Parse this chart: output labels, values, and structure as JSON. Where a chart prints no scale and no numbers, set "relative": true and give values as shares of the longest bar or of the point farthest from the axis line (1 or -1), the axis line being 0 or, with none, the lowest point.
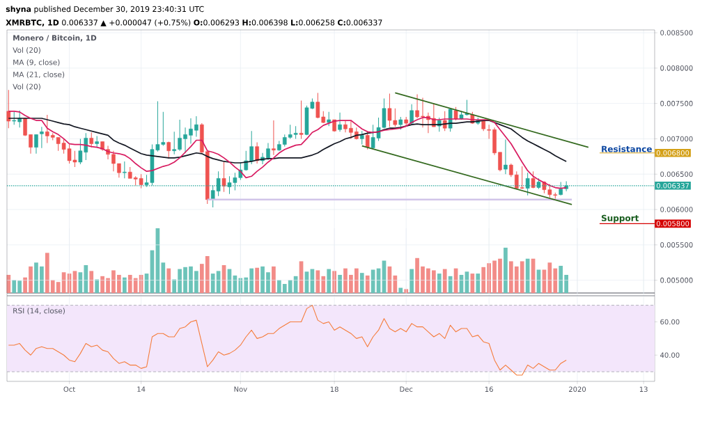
{
  "chart_data": [
    {
      "type": "candlestick",
      "title": "**shyna** published December 30, 2019 23:40:31 UTC",
      "subtitle": "**XMRBTC, 1D** 0.006337 ▲ +0.000047 (+0.75%) **O:**0.006293 **H:**0.006398 **L:**0.006258 **C:**0.006337",
      "x": [
        "2019-09-20",
        "2019-09-21",
        "2019-09-22",
        "2019-09-23",
        "2019-09-24",
        "2019-09-25",
        "2019-09-26",
        "2019-09-27",
        "2019-09-28",
        "2019-09-29",
        "2019-09-30",
        "2019-10-01",
        "2019-10-02",
        "2019-10-03",
        "2019-10-04",
        "2019-10-05",
        "2019-10-06",
        "2019-10-07",
        "2019-10-08",
        "2019-10-09",
        "2019-10-10",
        "2019-10-11",
        "2019-10-12",
        "2019-10-13",
        "2019-10-14",
        "2019-10-15",
        "2019-10-16",
        "2019-10-17",
        "2019-10-18",
        "2019-10-19",
        "2019-10-20",
        "2019-10-21",
        "2019-10-22",
        "2019-10-23",
        "2019-10-24",
        "2019-10-25",
        "2019-10-26",
        "2019-10-27",
        "2019-10-28",
        "2019-10-29",
        "2019-10-30",
        "2019-10-31",
        "2019-11-01",
        "2019-11-02",
        "2019-11-03",
        "2019-11-04",
        "2019-11-05",
        "2019-11-06",
        "2019-11-07",
        "2019-11-08",
        "2019-11-09",
        "2019-11-10",
        "2019-11-11",
        "2019-11-12",
        "2019-11-13",
        "2019-11-14",
        "2019-11-15",
        "2019-11-16",
        "2019-11-17",
        "2019-11-18",
        "2019-11-19",
        "2019-11-20",
        "2019-11-21",
        "2019-11-22",
        "2019-11-23",
        "2019-11-24",
        "2019-11-25",
        "2019-11-26",
        "2019-11-27",
        "2019-11-28",
        "2019-11-29",
        "2019-11-30",
        "2019-12-01",
        "2019-12-02",
        "2019-12-03",
        "2019-12-04",
        "2019-12-05",
        "2019-12-06",
        "2019-12-07",
        "2019-12-08",
        "2019-12-09",
        "2019-12-10",
        "2019-12-11",
        "2019-12-12",
        "2019-12-13",
        "2019-12-14",
        "2019-12-15",
        "2019-12-16",
        "2019-12-17",
        "2019-12-18",
        "2019-12-19",
        "2019-12-20",
        "2019-12-21",
        "2019-12-22",
        "2019-12-23",
        "2019-12-24",
        "2019-12-25",
        "2019-12-26",
        "2019-12-27",
        "2019-12-28",
        "2019-12-29",
        "2019-12-30"
      ],
      "ohlc": [
        [
          0.00739,
          0.00769,
          0.00715,
          0.00725
        ],
        [
          0.00725,
          0.00738,
          0.0072,
          0.00726
        ],
        [
          0.00724,
          0.0074,
          0.00716,
          0.00729
        ],
        [
          0.00729,
          0.0073,
          0.00704,
          0.00705
        ],
        [
          0.00706,
          0.00706,
          0.00679,
          0.00688
        ],
        [
          0.00688,
          0.00706,
          0.00679,
          0.00706
        ],
        [
          0.00707,
          0.00717,
          0.00687,
          0.0071
        ],
        [
          0.0071,
          0.00734,
          0.00694,
          0.00704
        ],
        [
          0.00705,
          0.00708,
          0.00698,
          0.00702
        ],
        [
          0.00702,
          0.00702,
          0.00683,
          0.00693
        ],
        [
          0.00694,
          0.007,
          0.00679,
          0.00685
        ],
        [
          0.00686,
          0.00692,
          0.00665,
          0.00669
        ],
        [
          0.0067,
          0.00683,
          0.0066,
          0.00667
        ],
        [
          0.00667,
          0.007,
          0.00664,
          0.00683
        ],
        [
          0.00681,
          0.00708,
          0.0067,
          0.00701
        ],
        [
          0.00701,
          0.00709,
          0.00688,
          0.00693
        ],
        [
          0.00693,
          0.00704,
          0.00688,
          0.00696
        ],
        [
          0.00696,
          0.00696,
          0.00683,
          0.00685
        ],
        [
          0.00685,
          0.0069,
          0.00671,
          0.00678
        ],
        [
          0.00678,
          0.00683,
          0.00654,
          0.00665
        ],
        [
          0.00665,
          0.00665,
          0.00645,
          0.00652
        ],
        [
          0.00652,
          0.00668,
          0.00644,
          0.00653
        ],
        [
          0.00653,
          0.0066,
          0.00644,
          0.00644
        ],
        [
          0.00645,
          0.00647,
          0.00634,
          0.00643
        ],
        [
          0.00644,
          0.0065,
          0.0063,
          0.00635
        ],
        [
          0.00635,
          0.00649,
          0.00632,
          0.00638
        ],
        [
          0.00638,
          0.00692,
          0.00634,
          0.00685
        ],
        [
          0.00684,
          0.00753,
          0.00682,
          0.00692
        ],
        [
          0.00692,
          0.00738,
          0.0069,
          0.00695
        ],
        [
          0.00695,
          0.00696,
          0.00672,
          0.00683
        ],
        [
          0.00683,
          0.0071,
          0.00678,
          0.00685
        ],
        [
          0.00685,
          0.00727,
          0.00683,
          0.00701
        ],
        [
          0.007,
          0.00716,
          0.0068,
          0.00706
        ],
        [
          0.00705,
          0.00729,
          0.00693,
          0.00714
        ],
        [
          0.00712,
          0.00732,
          0.00703,
          0.0072
        ],
        [
          0.0072,
          0.00722,
          0.0068,
          0.00681
        ],
        [
          0.00682,
          0.00682,
          0.00608,
          0.00614
        ],
        [
          0.00614,
          0.00634,
          0.00603,
          0.00627
        ],
        [
          0.00626,
          0.00654,
          0.00619,
          0.00644
        ],
        [
          0.00644,
          0.00667,
          0.00625,
          0.00633
        ],
        [
          0.00632,
          0.00647,
          0.00622,
          0.00638
        ],
        [
          0.00638,
          0.00652,
          0.00627,
          0.00645
        ],
        [
          0.00645,
          0.00667,
          0.00642,
          0.00656
        ],
        [
          0.00656,
          0.00683,
          0.00655,
          0.00669
        ],
        [
          0.00668,
          0.00711,
          0.00664,
          0.00689
        ],
        [
          0.00689,
          0.00695,
          0.00665,
          0.00669
        ],
        [
          0.00669,
          0.0068,
          0.00664,
          0.00674
        ],
        [
          0.00673,
          0.00694,
          0.0067,
          0.00686
        ],
        [
          0.00686,
          0.00726,
          0.00677,
          0.00684
        ],
        [
          0.00684,
          0.00697,
          0.00683,
          0.00692
        ],
        [
          0.00692,
          0.00706,
          0.00689,
          0.00702
        ],
        [
          0.00702,
          0.0072,
          0.007,
          0.00706
        ],
        [
          0.00706,
          0.00718,
          0.007,
          0.00708
        ],
        [
          0.00708,
          0.00754,
          0.007,
          0.00706
        ],
        [
          0.00706,
          0.00747,
          0.00705,
          0.00744
        ],
        [
          0.00743,
          0.00757,
          0.00742,
          0.00752
        ],
        [
          0.00752,
          0.00765,
          0.00729,
          0.0073
        ],
        [
          0.00731,
          0.00739,
          0.00722,
          0.00723
        ],
        [
          0.00723,
          0.00738,
          0.00718,
          0.00727
        ],
        [
          0.00727,
          0.00727,
          0.0071,
          0.00711
        ],
        [
          0.00713,
          0.00737,
          0.0071,
          0.0072
        ],
        [
          0.0072,
          0.00725,
          0.00709,
          0.00714
        ],
        [
          0.00715,
          0.00725,
          0.007,
          0.00709
        ],
        [
          0.0071,
          0.00716,
          0.00699,
          0.007
        ],
        [
          0.007,
          0.00711,
          0.00692,
          0.00705
        ],
        [
          0.00705,
          0.00711,
          0.00685,
          0.00688
        ],
        [
          0.00687,
          0.0072,
          0.00686,
          0.00702
        ],
        [
          0.00701,
          0.0073,
          0.00697,
          0.00716
        ],
        [
          0.00716,
          0.00757,
          0.00715,
          0.00743
        ],
        [
          0.00743,
          0.00764,
          0.00717,
          0.00726
        ],
        [
          0.00726,
          0.00743,
          0.00717,
          0.0072
        ],
        [
          0.0072,
          0.00731,
          0.00713,
          0.00727
        ],
        [
          0.00727,
          0.00731,
          0.00718,
          0.00722
        ],
        [
          0.00722,
          0.00749,
          0.0072,
          0.0074
        ],
        [
          0.0074,
          0.00763,
          0.00729,
          0.00731
        ],
        [
          0.00732,
          0.00758,
          0.00716,
          0.00731
        ],
        [
          0.00732,
          0.00737,
          0.00708,
          0.00727
        ],
        [
          0.00729,
          0.0075,
          0.00717,
          0.00717
        ],
        [
          0.00718,
          0.0073,
          0.0071,
          0.00726
        ],
        [
          0.00726,
          0.00739,
          0.00711,
          0.00715
        ],
        [
          0.00715,
          0.00743,
          0.0071,
          0.00742
        ],
        [
          0.0074,
          0.00745,
          0.00726,
          0.00728
        ],
        [
          0.00728,
          0.00739,
          0.00727,
          0.00734
        ],
        [
          0.00734,
          0.00755,
          0.00733,
          0.00736
        ],
        [
          0.00734,
          0.00738,
          0.00721,
          0.00722
        ],
        [
          0.00722,
          0.0073,
          0.0072,
          0.00726
        ],
        [
          0.00726,
          0.00726,
          0.00711,
          0.00714
        ],
        [
          0.00713,
          0.0072,
          0.007,
          0.00712
        ],
        [
          0.00713,
          0.00716,
          0.00677,
          0.0068
        ],
        [
          0.00681,
          0.00681,
          0.00654,
          0.00656
        ],
        [
          0.00657,
          0.00699,
          0.0065,
          0.00663
        ],
        [
          0.00663,
          0.00665,
          0.00646,
          0.00649
        ],
        [
          0.00649,
          0.00654,
          0.00629,
          0.0063
        ],
        [
          0.00631,
          0.00661,
          0.00629,
          0.0063
        ],
        [
          0.0063,
          0.00652,
          0.0062,
          0.00644
        ],
        [
          0.00644,
          0.00654,
          0.0063,
          0.00631
        ],
        [
          0.00631,
          0.00644,
          0.00629,
          0.00639
        ],
        [
          0.00639,
          0.0064,
          0.00623,
          0.00628
        ],
        [
          0.00628,
          0.00636,
          0.00617,
          0.00621
        ],
        [
          0.00621,
          0.00624,
          0.00615,
          0.0062
        ],
        [
          0.00621,
          0.00639,
          0.0062,
          0.00629
        ],
        [
          0.006293,
          0.006398,
          0.006258,
          0.006337
        ]
      ],
      "colors": [
        "#ef5350",
        "#26a69a",
        "#26a69a",
        "#ef5350",
        "#ef5350",
        "#26a69a",
        "#26a69a",
        "#ef5350",
        "#ef5350",
        "#ef5350",
        "#ef5350",
        "#ef5350",
        "#ef5350",
        "#26a69a",
        "#26a69a",
        "#ef5350",
        "#26a69a",
        "#ef5350",
        "#ef5350",
        "#ef5350",
        "#ef5350",
        "#26a69a",
        "#ef5350",
        "#ef5350",
        "#ef5350",
        "#26a69a",
        "#26a69a",
        "#26a69a",
        "#26a69a",
        "#ef5350",
        "#26a69a",
        "#26a69a",
        "#26a69a",
        "#26a69a",
        "#26a69a",
        "#ef5350",
        "#ef5350",
        "#26a69a",
        "#26a69a",
        "#ef5350",
        "#26a69a",
        "#26a69a",
        "#26a69a",
        "#26a69a",
        "#26a69a",
        "#ef5350",
        "#26a69a",
        "#26a69a",
        "#ef5350",
        "#26a69a",
        "#26a69a",
        "#26a69a",
        "#26a69a",
        "#ef5350",
        "#26a69a",
        "#26a69a",
        "#ef5350",
        "#ef5350",
        "#26a69a",
        "#ef5350",
        "#26a69a",
        "#ef5350",
        "#ef5350",
        "#ef5350",
        "#26a69a",
        "#ef5350",
        "#26a69a",
        "#26a69a",
        "#26a69a",
        "#ef5350",
        "#ef5350",
        "#26a69a",
        "#ef5350",
        "#26a69a",
        "#ef5350",
        "#ef5350",
        "#ef5350",
        "#ef5350",
        "#26a69a",
        "#ef5350",
        "#26a69a",
        "#ef5350",
        "#26a69a",
        "#26a69a",
        "#ef5350",
        "#26a69a",
        "#ef5350",
        "#ef5350",
        "#ef5350",
        "#ef5350",
        "#26a69a",
        "#ef5350",
        "#ef5350",
        "#ef5350",
        "#26a69a",
        "#ef5350",
        "#26a69a",
        "#ef5350",
        "#ef5350",
        "#ef5350",
        "#26a69a",
        "#26a69a"
      ],
      "series": [
        {
          "type": "line",
          "color": "#d1c4e9",
          "x": [
            "2019-10-26",
            "2019-12-31"
          ],
          "values": [
            0.00614,
            0.00614
          ]
        },
        {
          "type": "line",
          "color": "#131722",
          "values": [
            0.00729,
            0.00729,
            0.00729,
            0.00729,
            0.00729,
            0.00729,
            0.00729,
            0.00727,
            0.00725,
            0.00723,
            0.00721,
            0.0072,
            0.00717,
            0.00715,
            0.00713,
            0.00711,
            0.00709,
            0.00707,
            0.00705,
            0.00698,
            0.00694,
            0.00691,
            0.00687,
            0.00683,
            0.00679,
            0.00677,
            0.00676,
            0.00675,
            0.00674,
            0.00673,
            0.00673,
            0.00674,
            0.00676,
            0.00678,
            0.0068,
            0.00679,
            0.00675,
            0.00672,
            0.0067,
            0.00668,
            0.00667,
            0.00666,
            0.00666,
            0.00667,
            0.00668,
            0.0067,
            0.00671,
            0.00672,
            0.00672,
            0.00673,
            0.00673,
            0.00673,
            0.00673,
            0.00673,
            0.00675,
            0.00677,
            0.0068,
            0.00685,
            0.00689,
            0.00693,
            0.00696,
            0.007,
            0.00702,
            0.00705,
            0.00706,
            0.00708,
            0.00709,
            0.0071,
            0.00713,
            0.00715,
            0.00715,
            0.00716,
            0.00718,
            0.0072,
            0.00721,
            0.0072,
            0.0072,
            0.0072,
            0.0072,
            0.00721,
            0.00722,
            0.00722,
            0.00723,
            0.00724,
            0.00724,
            0.00725,
            0.00726,
            0.00726,
            0.00723,
            0.0072,
            0.00717,
            0.00714,
            0.00708,
            0.00702,
            0.00697,
            0.00693,
            0.00689,
            0.00685,
            0.00681,
            0.00676,
            0.00672,
            0.00668
          ]
        },
        {
          "type": "line",
          "color": "#d81b60",
          "values": [
            0.00739,
            0.00739,
            0.00738,
            0.00733,
            0.00729,
            0.00726,
            0.00726,
            0.00715,
            0.0071,
            0.00706,
            0.007,
            0.00693,
            0.00692,
            0.00692,
            0.00691,
            0.00689,
            0.00688,
            0.00686,
            0.00682,
            0.0068,
            0.00679,
            0.00677,
            0.00672,
            0.00665,
            0.00659,
            0.00654,
            0.00655,
            0.00658,
            0.00661,
            0.00663,
            0.00667,
            0.00673,
            0.00681,
            0.00689,
            0.00698,
            0.00698,
            0.00683,
            0.00681,
            0.00678,
            0.00673,
            0.00667,
            0.0066,
            0.00654,
            0.00645,
            0.00647,
            0.00654,
            0.0066,
            0.00667,
            0.00673,
            0.0068,
            0.00685,
            0.00688,
            0.00691,
            0.00692,
            0.007,
            0.00709,
            0.00713,
            0.00719,
            0.00722,
            0.00725,
            0.00726,
            0.00726,
            0.00726,
            0.0072,
            0.00714,
            0.0071,
            0.00709,
            0.0071,
            0.00712,
            0.00713,
            0.00714,
            0.00715,
            0.00718,
            0.00723,
            0.00727,
            0.0073,
            0.0073,
            0.00727,
            0.00727,
            0.00728,
            0.00728,
            0.00728,
            0.00728,
            0.00728,
            0.00727,
            0.00727,
            0.00727,
            0.00727,
            0.00723,
            0.00713,
            0.00703,
            0.00693,
            0.0068,
            0.00667,
            0.00655,
            0.00647,
            0.00642,
            0.00638,
            0.00634,
            0.00631,
            0.0063,
            0.00631
          ]
        },
        {
          "type": "line",
          "color": "#33691e",
          "x": [
            "2019-11-29",
            "2020-01-03"
          ],
          "values": [
            0.00765,
            0.00688
          ]
        },
        {
          "type": "line",
          "color": "#33691e",
          "x": [
            "2019-11-23",
            "2019-12-31"
          ],
          "values": [
            0.0069,
            0.00607
          ]
        }
      ],
      "xlim": [
        "2019-09-19T17:00",
        "2020-01-15"
      ],
      "xticks": [
        {
          "value": "2019-10-01",
          "label": null
        },
        {
          "value": "2019-10-14",
          "label": null
        },
        {
          "value": "2019-11-01",
          "label": null
        },
        {
          "value": "2019-11-18",
          "label": null
        },
        {
          "value": "2019-12-01",
          "label": null
        },
        {
          "value": "2019-12-16",
          "label": null
        },
        {
          "value": "2020-01-01",
          "label": null
        },
        {
          "value": "2020-01-13",
          "label": null
        }
      ],
      "ylim": [
        0.00478,
        0.00854
      ],
      "yticks": [
        {
          "value": 0.005,
          "label": "0.005000"
        },
        {
          "value": 0.0055,
          "label": "0.005500"
        },
        {
          "value": 0.006,
          "label": "0.006000"
        },
        {
          "value": 0.0065,
          "label": "0.006500"
        },
        {
          "value": 0.007,
          "label": "0.007000"
        },
        {
          "value": 0.0075,
          "label": "0.007500"
        },
        {
          "value": 0.008,
          "label": "0.008000"
        },
        {
          "value": 0.0085,
          "label": "0.008500"
        }
      ],
      "tick_labels": "y",
      "grid": true,
      "ref_lines": [
        {
          "axis": "y",
          "value": 0.006337,
          "label": "0.006337",
          "color": "#26a69a",
          "line_style": "dotted"
        },
        {
          "axis": "y",
          "value": 0.0068,
          "label": "0.006800",
          "color": "#d4a017",
          "line_style": "solid"
        },
        {
          "axis": "y",
          "value": 0.0058,
          "label": "0.005800",
          "color": "#d50000",
          "line_style": "solid"
        }
      ],
      "annotations": [
        "Monero / Bitcoin, 1D",
        "Vol (20)",
        "MA (9, close)",
        "MA (21, close)",
        "Vol (20)",
        {
          "text": "Resistance",
          "y": 0.0068
        },
        {
          "text": "Support",
          "y": 0.0058
        }
      ]
    },
    {
      "type": "bar",
      "relative": true,
      "x": [
        "2019-09-20",
        "2019-09-21",
        "2019-09-22",
        "2019-09-23",
        "2019-09-24",
        "2019-09-25",
        "2019-09-26",
        "2019-09-27",
        "2019-09-28",
        "2019-09-29",
        "2019-09-30",
        "2019-10-01",
        "2019-10-02",
        "2019-10-03",
        "2019-10-04",
        "2019-10-05",
        "2019-10-06",
        "2019-10-07",
        "2019-10-08",
        "2019-10-09",
        "2019-10-10",
        "2019-10-11",
        "2019-10-12",
        "2019-10-13",
        "2019-10-14",
        "2019-10-15",
        "2019-10-16",
        "2019-10-17",
        "2019-10-18",
        "2019-10-19",
        "2019-10-20",
        "2019-10-21",
        "2019-10-22",
        "2019-10-23",
        "2019-10-24",
        "2019-10-25",
        "2019-10-26",
        "2019-10-27",
        "2019-10-28",
        "2019-10-29",
        "2019-10-30",
        "2019-10-31",
        "2019-11-01",
        "2019-11-02",
        "2019-11-03",
        "2019-11-04",
        "2019-11-05",
        "2019-11-06",
        "2019-11-07",
        "2019-11-08",
        "2019-11-09",
        "2019-11-10",
        "2019-11-11",
        "2019-11-12",
        "2019-11-13",
        "2019-11-14",
        "2019-11-15",
        "2019-11-16",
        "2019-11-17",
        "2019-11-18",
        "2019-11-19",
        "2019-11-20",
        "2019-11-21",
        "2019-11-22",
        "2019-11-23",
        "2019-11-24",
        "2019-11-25",
        "2019-11-26",
        "2019-11-27",
        "2019-11-28",
        "2019-11-29",
        "2019-11-30",
        "2019-12-01",
        "2019-12-02",
        "2019-12-03",
        "2019-12-04",
        "2019-12-05",
        "2019-12-06",
        "2019-12-07",
        "2019-12-08",
        "2019-12-09",
        "2019-12-10",
        "2019-12-11",
        "2019-12-12",
        "2019-12-13",
        "2019-12-14",
        "2019-12-15",
        "2019-12-16",
        "2019-12-17",
        "2019-12-18",
        "2019-12-19",
        "2019-12-20",
        "2019-12-21",
        "2019-12-22",
        "2019-12-23",
        "2019-12-24",
        "2019-12-25",
        "2019-12-26",
        "2019-12-27",
        "2019-12-28",
        "2019-12-29",
        "2019-12-30"
      ],
      "values": [
        0.28,
        0.2,
        0.19,
        0.24,
        0.41,
        0.47,
        0.41,
        0.62,
        0.2,
        0.17,
        0.32,
        0.3,
        0.34,
        0.32,
        0.43,
        0.34,
        0.21,
        0.26,
        0.23,
        0.35,
        0.28,
        0.24,
        0.28,
        0.23,
        0.28,
        0.3,
        0.66,
        1,
        0.47,
        0.38,
        0.21,
        0.37,
        0.4,
        0.41,
        0.34,
        0.45,
        0.57,
        0.3,
        0.34,
        0.43,
        0.37,
        0.27,
        0.23,
        0.24,
        0.38,
        0.39,
        0.41,
        0.32,
        0.41,
        0.2,
        0.14,
        0.2,
        0.26,
        0.49,
        0.33,
        0.37,
        0.35,
        0.26,
        0.37,
        0.34,
        0.28,
        0.38,
        0.28,
        0.38,
        0.31,
        0.27,
        0.36,
        0.38,
        0.5,
        0.41,
        0.27,
        0.08,
        0.06,
        0.37,
        0.54,
        0.41,
        0.38,
        0.35,
        0.3,
        0.37,
        0.26,
        0.38,
        0.28,
        0.33,
        0.3,
        0.3,
        0.4,
        0.46,
        0.5,
        0.53,
        0.7,
        0.49,
        0.41,
        0.49,
        0.53,
        0.53,
        0.36,
        0.36,
        0.47,
        0.38,
        0.42,
        0.28
      ],
      "colors": [
        "#f28c88",
        "#6cc3b9",
        "#6cc3b9",
        "#f28c88",
        "#f28c88",
        "#6cc3b9",
        "#6cc3b9",
        "#f28c88",
        "#f28c88",
        "#f28c88",
        "#f28c88",
        "#f28c88",
        "#f28c88",
        "#6cc3b9",
        "#6cc3b9",
        "#f28c88",
        "#6cc3b9",
        "#f28c88",
        "#f28c88",
        "#f28c88",
        "#f28c88",
        "#6cc3b9",
        "#f28c88",
        "#f28c88",
        "#f28c88",
        "#6cc3b9",
        "#6cc3b9",
        "#6cc3b9",
        "#6cc3b9",
        "#f28c88",
        "#6cc3b9",
        "#6cc3b9",
        "#6cc3b9",
        "#6cc3b9",
        "#6cc3b9",
        "#f28c88",
        "#f28c88",
        "#6cc3b9",
        "#6cc3b9",
        "#f28c88",
        "#6cc3b9",
        "#6cc3b9",
        "#6cc3b9",
        "#6cc3b9",
        "#6cc3b9",
        "#f28c88",
        "#6cc3b9",
        "#6cc3b9",
        "#f28c88",
        "#6cc3b9",
        "#6cc3b9",
        "#6cc3b9",
        "#6cc3b9",
        "#f28c88",
        "#6cc3b9",
        "#6cc3b9",
        "#f28c88",
        "#f28c88",
        "#6cc3b9",
        "#f28c88",
        "#6cc3b9",
        "#f28c88",
        "#f28c88",
        "#f28c88",
        "#6cc3b9",
        "#f28c88",
        "#6cc3b9",
        "#6cc3b9",
        "#6cc3b9",
        "#f28c88",
        "#f28c88",
        "#6cc3b9",
        "#f28c88",
        "#6cc3b9",
        "#f28c88",
        "#f28c88",
        "#f28c88",
        "#f28c88",
        "#6cc3b9",
        "#f28c88",
        "#6cc3b9",
        "#f28c88",
        "#6cc3b9",
        "#6cc3b9",
        "#f28c88",
        "#6cc3b9",
        "#f28c88",
        "#f28c88",
        "#f28c88",
        "#f28c88",
        "#6cc3b9",
        "#f28c88",
        "#f28c88",
        "#f28c88",
        "#6cc3b9",
        "#f28c88",
        "#6cc3b9",
        "#f28c88",
        "#f28c88",
        "#f28c88",
        "#6cc3b9",
        "#6cc3b9"
      ],
      "xlim": [
        "2019-09-19T17:00",
        "2020-01-15"
      ],
      "xticks": [
        {
          "value": "2019-10-01",
          "label": null
        },
        {
          "value": "2019-10-14",
          "label": null
        },
        {
          "value": "2019-11-01",
          "label": null
        },
        {
          "value": "2019-11-18",
          "label": null
        },
        {
          "value": "2019-12-01",
          "label": null
        },
        {
          "value": "2019-12-16",
          "label": null
        },
        {
          "value": "2020-01-01",
          "label": null
        },
        {
          "value": "2020-01-13",
          "label": null
        }
      ],
      "tick_labels": false,
      "grid": "x"
    },
    {
      "type": "line",
      "color": "#f57c3a",
      "x": [
        "2019-09-20",
        "2019-09-21",
        "2019-09-22",
        "2019-09-23",
        "2019-09-24",
        "2019-09-25",
        "2019-09-26",
        "2019-09-27",
        "2019-09-28",
        "2019-09-29",
        "2019-09-30",
        "2019-10-01",
        "2019-10-02",
        "2019-10-03",
        "2019-10-04",
        "2019-10-05",
        "2019-10-06",
        "2019-10-07",
        "2019-10-08",
        "2019-10-09",
        "2019-10-10",
        "2019-10-11",
        "2019-10-12",
        "2019-10-13",
        "2019-10-14",
        "2019-10-15",
        "2019-10-16",
        "2019-10-17",
        "2019-10-18",
        "2019-10-19",
        "2019-10-20",
        "2019-10-21",
        "2019-10-22",
        "2019-10-23",
        "2019-10-24",
        "2019-10-25",
        "2019-10-26",
        "2019-10-27",
        "2019-10-28",
        "2019-10-29",
        "2019-10-30",
        "2019-10-31",
        "2019-11-01",
        "2019-11-02",
        "2019-11-03",
        "2019-11-04",
        "2019-11-05",
        "2019-11-06",
        "2019-11-07",
        "2019-11-08",
        "2019-11-09",
        "2019-11-10",
        "2019-11-11",
        "2019-11-12",
        "2019-11-13",
        "2019-11-14",
        "2019-11-15",
        "2019-11-16",
        "2019-11-17",
        "2019-11-18",
        "2019-11-19",
        "2019-11-20",
        "2019-11-21",
        "2019-11-22",
        "2019-11-23",
        "2019-11-24",
        "2019-11-25",
        "2019-11-26",
        "2019-11-27",
        "2019-11-28",
        "2019-11-29",
        "2019-11-30",
        "2019-12-01",
        "2019-12-02",
        "2019-12-03",
        "2019-12-04",
        "2019-12-05",
        "2019-12-06",
        "2019-12-07",
        "2019-12-08",
        "2019-12-09",
        "2019-12-10",
        "2019-12-11",
        "2019-12-12",
        "2019-12-13",
        "2019-12-14",
        "2019-12-15",
        "2019-12-16",
        "2019-12-17",
        "2019-12-18",
        "2019-12-19",
        "2019-12-20",
        "2019-12-21",
        "2019-12-22",
        "2019-12-23",
        "2019-12-24",
        "2019-12-25",
        "2019-12-26",
        "2019-12-27",
        "2019-12-28",
        "2019-12-29",
        "2019-12-30"
      ],
      "values": [
        46,
        46,
        47,
        43,
        40,
        44,
        45,
        44,
        44,
        42,
        40,
        37,
        36,
        41,
        47,
        45,
        46,
        43,
        42,
        38,
        35,
        36,
        34,
        34,
        32,
        33,
        51,
        53,
        53,
        51,
        51,
        56,
        57,
        60,
        61,
        47,
        33,
        37,
        42,
        40,
        41,
        43,
        46,
        51,
        55,
        50,
        51,
        53,
        53,
        56,
        58,
        60,
        60,
        60,
        68,
        70,
        61,
        59,
        60,
        55,
        57,
        55,
        53,
        50,
        51,
        45,
        51,
        55,
        62,
        56,
        54,
        56,
        54,
        59,
        57,
        57,
        54,
        51,
        53,
        50,
        58,
        54,
        56,
        56,
        51,
        52,
        48,
        47,
        37,
        31,
        34,
        31,
        28,
        28,
        34,
        32,
        35,
        33,
        31,
        31,
        35,
        37
      ],
      "xlim": [
        "2019-09-19T17:00",
        "2020-01-15"
      ],
      "xticks": [
        {
          "value": "2019-10-01",
          "label": "Oct"
        },
        {
          "value": "2019-10-14",
          "label": "14"
        },
        {
          "value": "2019-11-01",
          "label": "Nov"
        },
        {
          "value": "2019-11-18",
          "label": "18"
        },
        {
          "value": "2019-12-01",
          "label": "Dec"
        },
        {
          "value": "2019-12-16",
          "label": "16"
        },
        {
          "value": "2020-01-01",
          "label": "2020"
        },
        {
          "value": "2020-01-13",
          "label": "13"
        }
      ],
      "ylim": [
        24.2,
        75.7
      ],
      "yticks": [
        {
          "value": 40,
          "label": "40.00"
        },
        {
          "value": 60,
          "label": "60.00"
        }
      ],
      "grid": true,
      "bands": [
        {
          "axis": "y",
          "from": 30,
          "to": 70,
          "color": "#f3e6fb"
        }
      ],
      "ref_lines": [
        {
          "axis": "y",
          "value": 30,
          "color": "#9598a1",
          "line_style": "dashed"
        },
        {
          "axis": "y",
          "value": 70,
          "color": "#9598a1",
          "line_style": "dashed"
        }
      ],
      "annotations": [
        "RSI (14, close)"
      ]
    }
  ]
}
